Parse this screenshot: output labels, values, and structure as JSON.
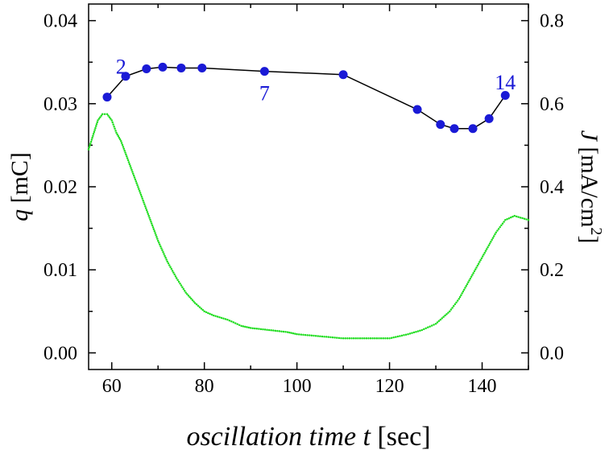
{
  "chart_data": {
    "type": "line",
    "xlabel": "oscillation time t  [sec]",
    "ylabel_left": "q [mC]",
    "ylabel_right": "J [mA/cm2]",
    "xlim": [
      55,
      150
    ],
    "ylim_left": [
      -0.002,
      0.042
    ],
    "ylim_right": [
      -0.04,
      0.84
    ],
    "x_ticks": [
      60,
      80,
      100,
      120,
      140
    ],
    "y_ticks_left": [
      "0.00",
      "0.01",
      "0.02",
      "0.03",
      "0.04"
    ],
    "y_ticks_right": [
      "0.0",
      "0.2",
      "0.4",
      "0.6",
      "0.8"
    ],
    "series": [
      {
        "axis": "left",
        "color": "#1a1ad6",
        "line_color": "#000000",
        "marker": "circle",
        "x": [
          59,
          63,
          67.5,
          71,
          75,
          79.5,
          93,
          110,
          126,
          131,
          134,
          138,
          141.5,
          145
        ],
        "y": [
          0.0308,
          0.0333,
          0.0342,
          0.0344,
          0.0343,
          0.0343,
          0.0339,
          0.0335,
          0.0293,
          0.0275,
          0.027,
          0.027,
          0.0282,
          0.031
        ]
      },
      {
        "axis": "right",
        "color": "#22dd22",
        "style": "dotted",
        "x": [
          55,
          57,
          58,
          59,
          60,
          61,
          62,
          64,
          66,
          68,
          70,
          72,
          74,
          76,
          78,
          80,
          82,
          85,
          88,
          90,
          94,
          98,
          100,
          105,
          110,
          115,
          120,
          124,
          127,
          130,
          133,
          135,
          137,
          139,
          141,
          143,
          145,
          147,
          150
        ],
        "y": [
          0.49,
          0.56,
          0.575,
          0.575,
          0.56,
          0.53,
          0.51,
          0.45,
          0.39,
          0.33,
          0.27,
          0.22,
          0.18,
          0.145,
          0.12,
          0.1,
          0.09,
          0.08,
          0.065,
          0.06,
          0.055,
          0.05,
          0.045,
          0.04,
          0.035,
          0.035,
          0.035,
          0.045,
          0.055,
          0.07,
          0.1,
          0.13,
          0.17,
          0.21,
          0.25,
          0.29,
          0.32,
          0.33,
          0.32
        ]
      }
    ],
    "annotations": [
      {
        "text": "2",
        "x": 62,
        "y": 0.0345
      },
      {
        "text": "7",
        "x": 93,
        "y": 0.0313
      },
      {
        "text": "14",
        "x": 145,
        "y": 0.0326
      }
    ]
  }
}
